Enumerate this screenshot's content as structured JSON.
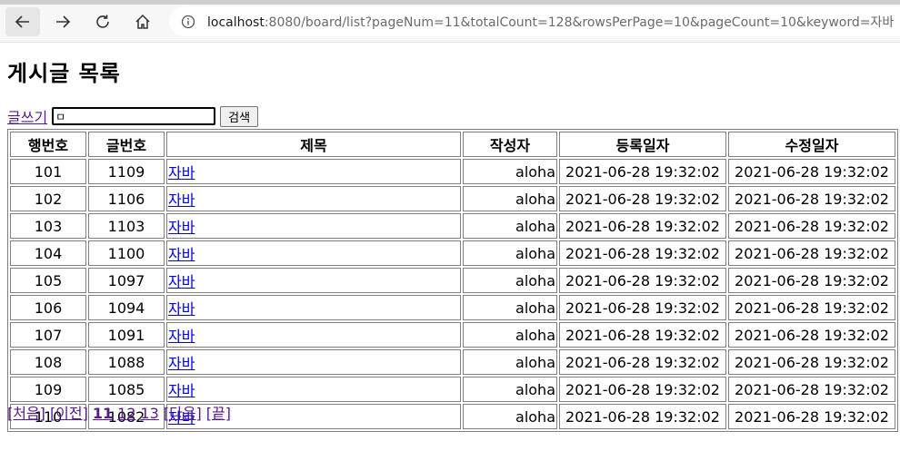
{
  "browser": {
    "url_host": "localhost",
    "url_rest": ":8080/board/list?pageNum=11&totalCount=128&rowsPerPage=10&pageCount=10&keyword=자바"
  },
  "page": {
    "title": "게시글 목록",
    "write_link": "글쓰기",
    "search_value": "ㅁ",
    "search_button": "검색"
  },
  "table": {
    "headers": [
      "행번호",
      "글번호",
      "제목",
      "작성자",
      "등록일자",
      "수정일자"
    ],
    "rows": [
      {
        "row": "101",
        "no": "1109",
        "title": "자바",
        "writer": "aloha",
        "reg": "2021-06-28 19:32:02",
        "mod": "2021-06-28 19:32:02"
      },
      {
        "row": "102",
        "no": "1106",
        "title": "자바",
        "writer": "aloha",
        "reg": "2021-06-28 19:32:02",
        "mod": "2021-06-28 19:32:02"
      },
      {
        "row": "103",
        "no": "1103",
        "title": "자바",
        "writer": "aloha",
        "reg": "2021-06-28 19:32:02",
        "mod": "2021-06-28 19:32:02"
      },
      {
        "row": "104",
        "no": "1100",
        "title": "자바",
        "writer": "aloha",
        "reg": "2021-06-28 19:32:02",
        "mod": "2021-06-28 19:32:02"
      },
      {
        "row": "105",
        "no": "1097",
        "title": "자바",
        "writer": "aloha",
        "reg": "2021-06-28 19:32:02",
        "mod": "2021-06-28 19:32:02"
      },
      {
        "row": "106",
        "no": "1094",
        "title": "자바",
        "writer": "aloha",
        "reg": "2021-06-28 19:32:02",
        "mod": "2021-06-28 19:32:02"
      },
      {
        "row": "107",
        "no": "1091",
        "title": "자바",
        "writer": "aloha",
        "reg": "2021-06-28 19:32:02",
        "mod": "2021-06-28 19:32:02"
      },
      {
        "row": "108",
        "no": "1088",
        "title": "자바",
        "writer": "aloha",
        "reg": "2021-06-28 19:32:02",
        "mod": "2021-06-28 19:32:02"
      },
      {
        "row": "109",
        "no": "1085",
        "title": "자바",
        "writer": "aloha",
        "reg": "2021-06-28 19:32:02",
        "mod": "2021-06-28 19:32:02"
      },
      {
        "row": "110",
        "no": "1082",
        "title": "자바",
        "writer": "aloha",
        "reg": "2021-06-28 19:32:02",
        "mod": "2021-06-28 19:32:02"
      }
    ]
  },
  "pager": {
    "first": "[처음]",
    "prev": "[이전]",
    "pages": [
      {
        "label": "11",
        "current": true
      },
      {
        "label": "12",
        "current": false
      },
      {
        "label": "13",
        "current": false
      }
    ],
    "next": "[다음]",
    "last": "[끝]"
  },
  "colors": {
    "link": "#0000ee",
    "visited_link": "#551a8b",
    "table_border": "#808080"
  }
}
